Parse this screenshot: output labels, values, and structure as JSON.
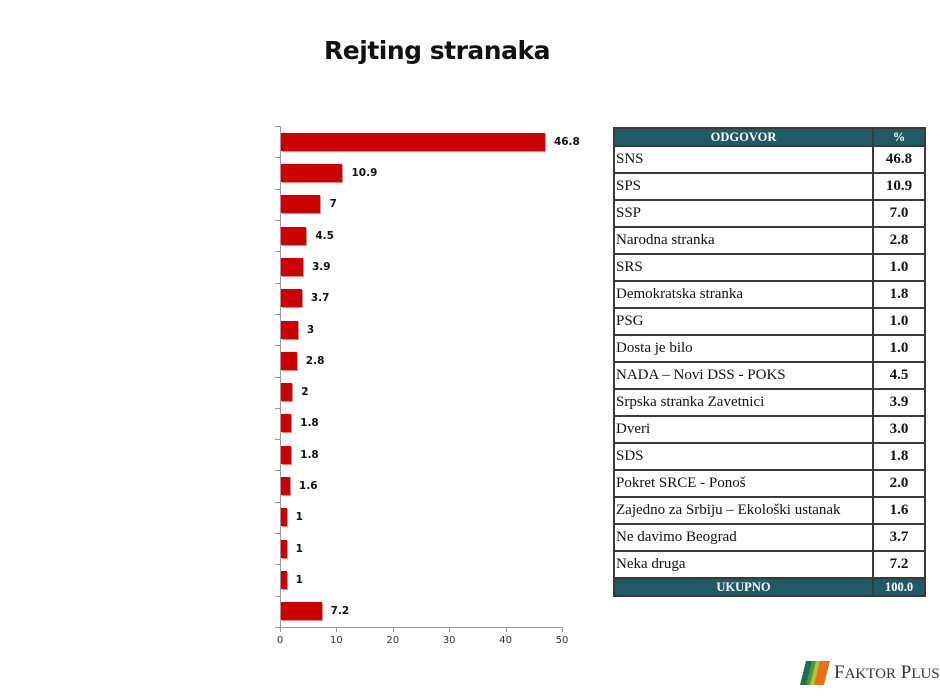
{
  "title": "Rejting stranaka",
  "chart_data": {
    "type": "bar",
    "orientation": "horizontal",
    "title": "Rejting stranaka",
    "xlabel": "",
    "ylabel": "",
    "xlim": [
      0,
      50
    ],
    "x_ticks": [
      0,
      10,
      20,
      30,
      40,
      50
    ],
    "grid": false,
    "legend": null,
    "bar_color": "#cc0000",
    "categories": [
      "SNS",
      "SPS",
      "SSP",
      "NADA – Novi DSS - POKS",
      "Srpska stranka Zavetnici",
      "Ne davimo Beograd",
      "Dveri",
      "Narodna stranka",
      "Pokret SRCE - Ponoš",
      "SDS",
      "Demokratska stranka",
      "Zajedno za Srbiju – Ekološki ustanak",
      "Dosta je bilo",
      "PSG",
      "SRS",
      "Neka druga"
    ],
    "values": [
      46.8,
      10.9,
      7,
      4.5,
      3.9,
      3.7,
      3,
      2.8,
      2,
      1.8,
      1.8,
      1.6,
      1,
      1,
      1,
      7.2
    ],
    "value_labels": [
      "46.8",
      "10.9",
      "7",
      "4.5",
      "3.9",
      "3.7",
      "3",
      "2.8",
      "2",
      "1.8",
      "1.8",
      "1.6",
      "1",
      "1",
      "1",
      "7.2"
    ]
  },
  "table": {
    "header": {
      "answer": "ODGOVOR",
      "percent": "%"
    },
    "rows": [
      {
        "name": "SNS",
        "pct": "46.8"
      },
      {
        "name": "SPS",
        "pct": "10.9"
      },
      {
        "name": "SSP",
        "pct": "7.0"
      },
      {
        "name": "Narodna stranka",
        "pct": "2.8"
      },
      {
        "name": "SRS",
        "pct": "1.0"
      },
      {
        "name": "Demokratska stranka",
        "pct": "1.8"
      },
      {
        "name": "PSG",
        "pct": "1.0"
      },
      {
        "name": "Dosta je bilo",
        "pct": "1.0"
      },
      {
        "name": "NADA – Novi DSS - POKS",
        "pct": "4.5"
      },
      {
        "name": "Srpska stranka Zavetnici",
        "pct": "3.9"
      },
      {
        "name": "Dveri",
        "pct": "3.0"
      },
      {
        "name": "SDS",
        "pct": "1.8"
      },
      {
        "name": "Pokret SRCE - Ponoš",
        "pct": "2.0"
      },
      {
        "name": "Zajedno za Srbiju – Ekološki ustanak",
        "pct": "1.6"
      },
      {
        "name": "Ne davimo Beograd",
        "pct": "3.7"
      },
      {
        "name": "Neka druga",
        "pct": "7.2"
      }
    ],
    "footer": {
      "label": "UKUPNO",
      "total": "100.0"
    },
    "header_color": "#1f5a66"
  },
  "logo": {
    "icon": "faktor-plus-logo-icon",
    "word1_initial": "F",
    "word1_rest": "AKTOR",
    "word2_initial": "P",
    "word2_rest": "LUS"
  }
}
